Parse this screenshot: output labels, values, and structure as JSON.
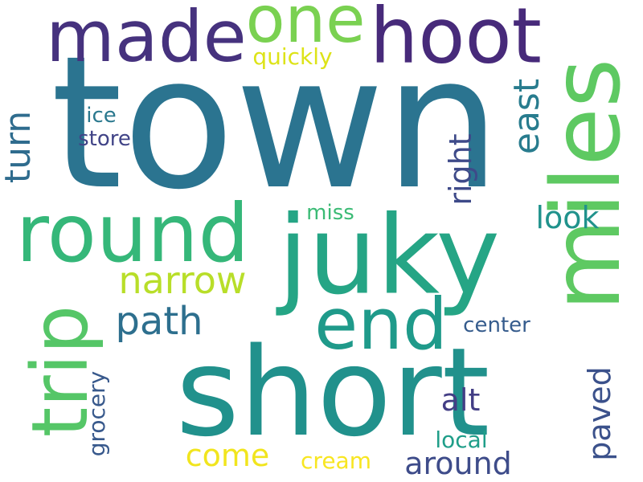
{
  "words": [
    {
      "text": "town",
      "color": "#2b7490",
      "orientation": "horizontal"
    },
    {
      "text": "short",
      "color": "#21918c",
      "orientation": "horizontal"
    },
    {
      "text": "juky",
      "color": "#25a585",
      "orientation": "horizontal"
    },
    {
      "text": "miles",
      "color": "#5ec962",
      "orientation": "vertical"
    },
    {
      "text": "round",
      "color": "#35b779",
      "orientation": "horizontal"
    },
    {
      "text": "made",
      "color": "#46327e",
      "orientation": "horizontal"
    },
    {
      "text": "hoot",
      "color": "#472a7a",
      "orientation": "horizontal"
    },
    {
      "text": "one",
      "color": "#7ad151",
      "orientation": "horizontal"
    },
    {
      "text": "end",
      "color": "#1f9a8a",
      "orientation": "horizontal"
    },
    {
      "text": "trip",
      "color": "#55c667",
      "orientation": "vertical"
    },
    {
      "text": "narrow",
      "color": "#b8de29",
      "orientation": "horizontal"
    },
    {
      "text": "path",
      "color": "#2d6f8e",
      "orientation": "horizontal"
    },
    {
      "text": "turn",
      "color": "#2f6c8e",
      "orientation": "vertical"
    },
    {
      "text": "east",
      "color": "#287c8e",
      "orientation": "vertical"
    },
    {
      "text": "right",
      "color": "#3e4a89",
      "orientation": "vertical"
    },
    {
      "text": "look",
      "color": "#20928c",
      "orientation": "horizontal"
    },
    {
      "text": "paved",
      "color": "#3b518b",
      "orientation": "vertical"
    },
    {
      "text": "around",
      "color": "#3e4c8a",
      "orientation": "horizontal"
    },
    {
      "text": "alt",
      "color": "#433e85",
      "orientation": "horizontal"
    },
    {
      "text": "come",
      "color": "#f1e51d",
      "orientation": "horizontal"
    },
    {
      "text": "grocery",
      "color": "#38598c",
      "orientation": "vertical"
    },
    {
      "text": "local",
      "color": "#1f9e89",
      "orientation": "horizontal"
    },
    {
      "text": "cream",
      "color": "#f8e621",
      "orientation": "horizontal"
    },
    {
      "text": "center",
      "color": "#365c8d",
      "orientation": "horizontal"
    },
    {
      "text": "quickly",
      "color": "#dde318",
      "orientation": "horizontal"
    },
    {
      "text": "ice",
      "color": "#2a788e",
      "orientation": "horizontal"
    },
    {
      "text": "store",
      "color": "#414487",
      "orientation": "horizontal"
    },
    {
      "text": "miss",
      "color": "#3bbb75",
      "orientation": "horizontal"
    }
  ]
}
